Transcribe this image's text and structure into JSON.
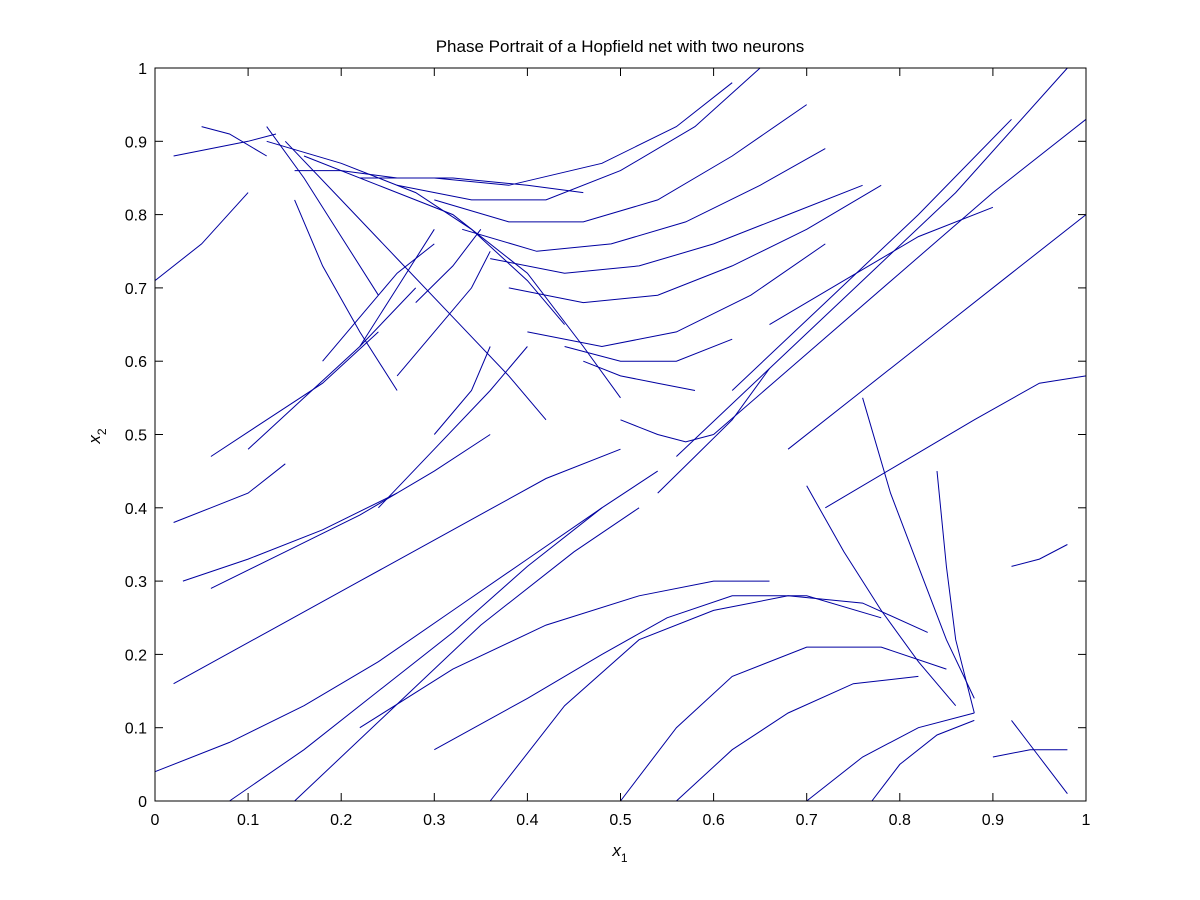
{
  "chart_data": {
    "type": "line",
    "title": "Phase Portrait of a Hopfield net with two neurons",
    "xlabel": {
      "base": "x",
      "sub": "1"
    },
    "ylabel": {
      "base": "x",
      "sub": "2"
    },
    "xlim": [
      0,
      1
    ],
    "ylim": [
      0,
      1
    ],
    "xticks": [
      0,
      0.1,
      0.2,
      0.3,
      0.4,
      0.5,
      0.6,
      0.7,
      0.8,
      0.9,
      1
    ],
    "yticks": [
      0,
      0.1,
      0.2,
      0.3,
      0.4,
      0.5,
      0.6,
      0.7,
      0.8,
      0.9,
      1
    ],
    "xtick_labels": [
      "0",
      "0.1",
      "0.2",
      "0.3",
      "0.4",
      "0.5",
      "0.6",
      "0.7",
      "0.8",
      "0.9",
      "1"
    ],
    "ytick_labels": [
      "0",
      "0.1",
      "0.2",
      "0.3",
      "0.4",
      "0.5",
      "0.6",
      "0.7",
      "0.8",
      "0.9",
      "1"
    ],
    "grid": false,
    "line_color": "#0000a0",
    "series": [
      {
        "x": [
          0.0,
          0.08,
          0.16,
          0.24,
          0.32,
          0.4,
          0.48,
          0.54
        ],
        "y": [
          0.04,
          0.08,
          0.13,
          0.19,
          0.26,
          0.33,
          0.4,
          0.45
        ]
      },
      {
        "x": [
          0.08,
          0.16,
          0.24,
          0.32,
          0.4,
          0.48
        ],
        "y": [
          0.0,
          0.07,
          0.15,
          0.23,
          0.32,
          0.4
        ]
      },
      {
        "x": [
          0.15,
          0.25,
          0.35,
          0.45,
          0.52
        ],
        "y": [
          0.0,
          0.12,
          0.24,
          0.34,
          0.4
        ]
      },
      {
        "x": [
          0.02,
          0.12,
          0.22,
          0.32,
          0.42,
          0.5
        ],
        "y": [
          0.16,
          0.23,
          0.3,
          0.37,
          0.44,
          0.48
        ]
      },
      {
        "x": [
          0.03,
          0.1,
          0.18,
          0.26
        ],
        "y": [
          0.3,
          0.33,
          0.37,
          0.42
        ]
      },
      {
        "x": [
          0.06,
          0.14,
          0.22,
          0.3,
          0.36
        ],
        "y": [
          0.29,
          0.34,
          0.39,
          0.45,
          0.5
        ]
      },
      {
        "x": [
          0.02,
          0.06,
          0.1,
          0.14
        ],
        "y": [
          0.38,
          0.4,
          0.42,
          0.46
        ]
      },
      {
        "x": [
          0.3,
          0.4,
          0.48,
          0.55,
          0.62,
          0.7,
          0.78
        ],
        "y": [
          0.07,
          0.14,
          0.2,
          0.25,
          0.28,
          0.28,
          0.25
        ]
      },
      {
        "x": [
          0.36,
          0.44,
          0.52,
          0.6,
          0.68,
          0.76,
          0.83
        ],
        "y": [
          0.0,
          0.13,
          0.22,
          0.26,
          0.28,
          0.27,
          0.23
        ]
      },
      {
        "x": [
          0.22,
          0.32,
          0.42,
          0.52,
          0.6,
          0.66
        ],
        "y": [
          0.1,
          0.18,
          0.24,
          0.28,
          0.3,
          0.3
        ]
      },
      {
        "x": [
          0.5,
          0.56,
          0.62,
          0.7,
          0.78,
          0.85
        ],
        "y": [
          0.0,
          0.1,
          0.17,
          0.21,
          0.21,
          0.18
        ]
      },
      {
        "x": [
          0.56,
          0.62,
          0.68,
          0.75,
          0.82
        ],
        "y": [
          0.0,
          0.07,
          0.12,
          0.16,
          0.17
        ]
      },
      {
        "x": [
          0.7,
          0.76,
          0.82,
          0.88
        ],
        "y": [
          0.0,
          0.06,
          0.1,
          0.12
        ]
      },
      {
        "x": [
          0.77,
          0.8,
          0.84,
          0.88
        ],
        "y": [
          0.0,
          0.05,
          0.09,
          0.11
        ]
      },
      {
        "x": [
          0.7,
          0.74,
          0.78,
          0.82,
          0.86
        ],
        "y": [
          0.43,
          0.34,
          0.26,
          0.19,
          0.13
        ]
      },
      {
        "x": [
          0.76,
          0.79,
          0.82,
          0.85,
          0.88
        ],
        "y": [
          0.55,
          0.42,
          0.32,
          0.22,
          0.14
        ]
      },
      {
        "x": [
          0.84,
          0.85,
          0.86,
          0.88
        ],
        "y": [
          0.45,
          0.32,
          0.22,
          0.12
        ]
      },
      {
        "x": [
          0.92,
          0.95,
          0.98
        ],
        "y": [
          0.32,
          0.33,
          0.35
        ]
      },
      {
        "x": [
          0.9,
          0.94,
          0.98
        ],
        "y": [
          0.06,
          0.07,
          0.07
        ]
      },
      {
        "x": [
          0.92,
          0.95,
          0.98
        ],
        "y": [
          0.11,
          0.06,
          0.01
        ]
      },
      {
        "x": [
          0.72,
          0.8,
          0.88,
          0.95,
          1.0
        ],
        "y": [
          0.4,
          0.46,
          0.52,
          0.57,
          0.58
        ]
      },
      {
        "x": [
          0.68,
          0.76,
          0.84,
          0.92,
          1.0
        ],
        "y": [
          0.48,
          0.56,
          0.64,
          0.72,
          0.8
        ]
      },
      {
        "x": [
          0.6,
          0.7,
          0.8,
          0.9,
          1.0
        ],
        "y": [
          0.5,
          0.61,
          0.72,
          0.83,
          0.93
        ]
      },
      {
        "x": [
          0.56,
          0.66,
          0.76,
          0.86,
          0.98
        ],
        "y": [
          0.47,
          0.59,
          0.71,
          0.83,
          1.0
        ]
      },
      {
        "x": [
          0.62,
          0.72,
          0.82,
          0.92
        ],
        "y": [
          0.56,
          0.68,
          0.8,
          0.93
        ]
      },
      {
        "x": [
          0.66,
          0.74,
          0.82,
          0.9
        ],
        "y": [
          0.65,
          0.71,
          0.77,
          0.81
        ]
      },
      {
        "x": [
          0.54,
          0.58,
          0.62,
          0.66
        ],
        "y": [
          0.42,
          0.47,
          0.52,
          0.59
        ]
      },
      {
        "x": [
          0.16,
          0.24,
          0.32,
          0.4,
          0.46,
          0.5
        ],
        "y": [
          0.88,
          0.84,
          0.8,
          0.72,
          0.62,
          0.55
        ]
      },
      {
        "x": [
          0.14,
          0.2,
          0.26,
          0.32,
          0.38,
          0.42
        ],
        "y": [
          0.9,
          0.82,
          0.74,
          0.66,
          0.58,
          0.52
        ]
      },
      {
        "x": [
          0.12,
          0.16,
          0.2,
          0.24
        ],
        "y": [
          0.92,
          0.85,
          0.77,
          0.69
        ]
      },
      {
        "x": [
          0.15,
          0.18,
          0.22,
          0.26
        ],
        "y": [
          0.82,
          0.73,
          0.64,
          0.56
        ]
      },
      {
        "x": [
          0.0,
          0.05,
          0.1
        ],
        "y": [
          0.71,
          0.76,
          0.83
        ]
      },
      {
        "x": [
          0.02,
          0.06,
          0.1,
          0.13
        ],
        "y": [
          0.88,
          0.89,
          0.9,
          0.91
        ]
      },
      {
        "x": [
          0.05,
          0.08,
          0.12
        ],
        "y": [
          0.92,
          0.91,
          0.88
        ]
      },
      {
        "x": [
          0.15,
          0.2,
          0.26,
          0.32,
          0.4,
          0.46
        ],
        "y": [
          0.86,
          0.86,
          0.85,
          0.85,
          0.84,
          0.83
        ]
      },
      {
        "x": [
          0.12,
          0.2,
          0.28,
          0.34,
          0.4,
          0.44
        ],
        "y": [
          0.9,
          0.87,
          0.83,
          0.78,
          0.71,
          0.65
        ]
      },
      {
        "x": [
          0.22,
          0.3,
          0.38,
          0.48,
          0.56,
          0.62
        ],
        "y": [
          0.85,
          0.85,
          0.84,
          0.87,
          0.92,
          0.98
        ]
      },
      {
        "x": [
          0.26,
          0.34,
          0.42,
          0.5,
          0.58,
          0.65
        ],
        "y": [
          0.84,
          0.82,
          0.82,
          0.86,
          0.92,
          1.0
        ]
      },
      {
        "x": [
          0.3,
          0.38,
          0.46,
          0.54,
          0.62,
          0.7
        ],
        "y": [
          0.82,
          0.79,
          0.79,
          0.82,
          0.88,
          0.95
        ]
      },
      {
        "x": [
          0.33,
          0.41,
          0.49,
          0.57,
          0.65,
          0.72
        ],
        "y": [
          0.78,
          0.75,
          0.76,
          0.79,
          0.84,
          0.89
        ]
      },
      {
        "x": [
          0.36,
          0.44,
          0.52,
          0.6,
          0.68,
          0.76
        ],
        "y": [
          0.74,
          0.72,
          0.73,
          0.76,
          0.8,
          0.84
        ]
      },
      {
        "x": [
          0.38,
          0.46,
          0.54,
          0.62,
          0.7,
          0.78
        ],
        "y": [
          0.7,
          0.68,
          0.69,
          0.73,
          0.78,
          0.84
        ]
      },
      {
        "x": [
          0.4,
          0.48,
          0.56,
          0.64,
          0.72
        ],
        "y": [
          0.64,
          0.62,
          0.64,
          0.69,
          0.76
        ]
      },
      {
        "x": [
          0.44,
          0.5,
          0.56,
          0.62
        ],
        "y": [
          0.62,
          0.6,
          0.6,
          0.63
        ]
      },
      {
        "x": [
          0.46,
          0.5,
          0.54,
          0.58
        ],
        "y": [
          0.6,
          0.58,
          0.57,
          0.56
        ]
      },
      {
        "x": [
          0.1,
          0.16,
          0.22,
          0.28
        ],
        "y": [
          0.48,
          0.55,
          0.62,
          0.7
        ]
      },
      {
        "x": [
          0.06,
          0.12,
          0.18,
          0.24
        ],
        "y": [
          0.47,
          0.52,
          0.57,
          0.64
        ]
      },
      {
        "x": [
          0.22,
          0.26,
          0.3
        ],
        "y": [
          0.62,
          0.7,
          0.78
        ]
      },
      {
        "x": [
          0.24,
          0.3,
          0.36,
          0.4
        ],
        "y": [
          0.4,
          0.48,
          0.56,
          0.62
        ]
      },
      {
        "x": [
          0.3,
          0.34,
          0.36
        ],
        "y": [
          0.5,
          0.56,
          0.62
        ]
      },
      {
        "x": [
          0.26,
          0.3,
          0.34,
          0.36
        ],
        "y": [
          0.58,
          0.64,
          0.7,
          0.75
        ]
      },
      {
        "x": [
          0.28,
          0.32,
          0.35
        ],
        "y": [
          0.68,
          0.73,
          0.78
        ]
      },
      {
        "x": [
          0.18,
          0.22,
          0.26,
          0.3
        ],
        "y": [
          0.6,
          0.66,
          0.72,
          0.76
        ]
      },
      {
        "x": [
          0.5,
          0.52,
          0.54,
          0.57,
          0.6
        ],
        "y": [
          0.52,
          0.51,
          0.5,
          0.49,
          0.5
        ]
      }
    ]
  }
}
